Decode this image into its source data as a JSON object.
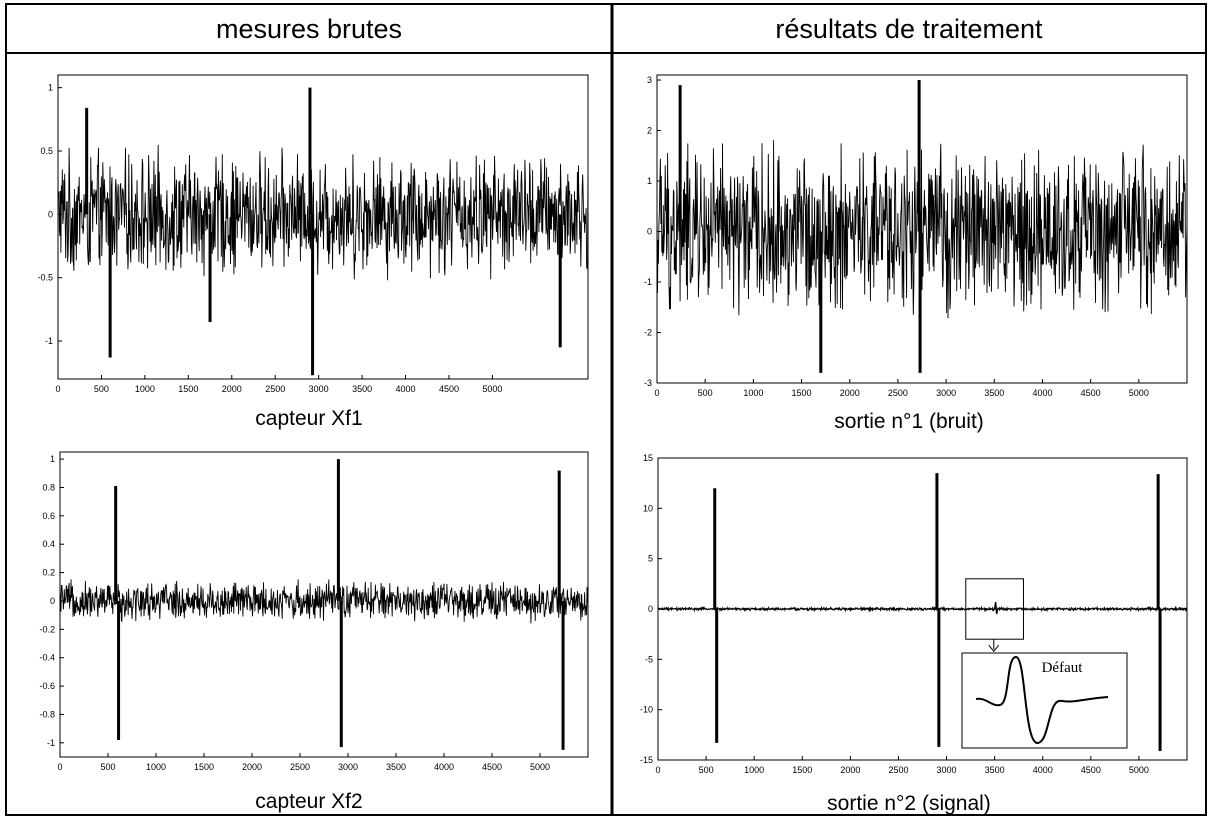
{
  "headers": {
    "left": "mesures brutes",
    "right": "résultats de traitement"
  },
  "colors": {
    "ink": "#000000",
    "background": "#ffffff"
  },
  "chart_data": [
    {
      "type": "line",
      "id": "xf1",
      "caption": "capteur Xf1",
      "title": "",
      "xlabel": "",
      "ylabel": "",
      "xlim": [
        0,
        6100
      ],
      "ylim": [
        -1.3,
        1.1
      ],
      "xticks": [
        0,
        500,
        1000,
        1500,
        2000,
        2500,
        3000,
        3500,
        4000,
        4500,
        5000
      ],
      "xtick_labels": [
        "0",
        "500",
        "1000",
        "1500",
        "2000",
        "2500",
        "3000",
        "3500",
        "4000",
        "4500",
        "5000"
      ],
      "yticks": [
        1,
        0.5,
        0,
        -0.5,
        -1
      ],
      "ytick_labels": [
        "1",
        "0.5",
        "0",
        "-0.5",
        "-1"
      ],
      "noise_amplitude": 0.55,
      "spikes": [
        {
          "x": 330,
          "y": 0.84
        },
        {
          "x": 600,
          "y": -1.13
        },
        {
          "x": 1750,
          "y": -0.85
        },
        {
          "x": 2900,
          "y": 1.0
        },
        {
          "x": 2930,
          "y": -1.27
        },
        {
          "x": 5780,
          "y": -1.05
        }
      ]
    },
    {
      "type": "line",
      "id": "s1",
      "caption": "sortie n°1 (bruit)",
      "title": "",
      "xlabel": "",
      "ylabel": "",
      "xlim": [
        0,
        5500
      ],
      "ylim": [
        -3,
        3.1
      ],
      "xticks": [
        0,
        500,
        1000,
        1500,
        2000,
        2500,
        3000,
        3500,
        4000,
        4500,
        5000
      ],
      "xtick_labels": [
        "0",
        "500",
        "1000",
        "1500",
        "2000",
        "2500",
        "3000",
        "3500",
        "4000",
        "4500",
        "5000"
      ],
      "yticks": [
        3,
        2,
        1,
        0,
        -1,
        -2,
        -3
      ],
      "ytick_labels": [
        "3",
        "2",
        "1",
        "0",
        "-1",
        "-2",
        "-3"
      ],
      "noise_amplitude": 1.9,
      "spikes": [
        {
          "x": 240,
          "y": 2.9
        },
        {
          "x": 1700,
          "y": -2.8
        },
        {
          "x": 2720,
          "y": 3.0
        },
        {
          "x": 2730,
          "y": -2.8
        }
      ]
    },
    {
      "type": "line",
      "id": "xf2",
      "caption": "capteur Xf2",
      "title": "",
      "xlabel": "",
      "ylabel": "",
      "xlim": [
        0,
        5500
      ],
      "ylim": [
        -1.1,
        1.05
      ],
      "xticks": [
        0,
        500,
        1000,
        1500,
        2000,
        2500,
        3000,
        3500,
        4000,
        4500,
        5000
      ],
      "xtick_labels": [
        "0",
        "500",
        "1000",
        "1500",
        "2000",
        "2500",
        "3000",
        "3500",
        "4000",
        "4500",
        "5000"
      ],
      "yticks": [
        1,
        0.8,
        0.6,
        0.4,
        0.2,
        0,
        -0.2,
        -0.4,
        -0.6,
        -0.8,
        -1
      ],
      "ytick_labels": [
        "1",
        "0.8",
        "0.6",
        "0.4",
        "0.2",
        "0",
        "-0.2",
        "-0.4",
        "-0.6",
        "-0.8",
        "-1"
      ],
      "noise_amplitude": 0.16,
      "spikes": [
        {
          "x": 580,
          "y": 0.81
        },
        {
          "x": 610,
          "y": -0.98
        },
        {
          "x": 2900,
          "y": 1.0
        },
        {
          "x": 2930,
          "y": -1.03
        },
        {
          "x": 5200,
          "y": 0.92
        },
        {
          "x": 5240,
          "y": -1.05
        }
      ]
    },
    {
      "type": "line",
      "id": "s2",
      "caption": "sortie n°2 (signal)",
      "title": "",
      "xlabel": "",
      "ylabel": "",
      "xlim": [
        0,
        5500
      ],
      "ylim": [
        -15,
        15
      ],
      "xticks": [
        0,
        500,
        1000,
        1500,
        2000,
        2500,
        3000,
        3500,
        4000,
        4500,
        5000
      ],
      "xtick_labels": [
        "0",
        "500",
        "1000",
        "1500",
        "2000",
        "2500",
        "3000",
        "3500",
        "4000",
        "4500",
        "5000"
      ],
      "yticks": [
        15,
        10,
        5,
        0,
        -5,
        -10,
        -15
      ],
      "ytick_labels": [
        "15",
        "10",
        "5",
        "0",
        "-5",
        "-10",
        "-15"
      ],
      "noise_amplitude": 0.25,
      "spikes": [
        {
          "x": 590,
          "y": 12.0
        },
        {
          "x": 610,
          "y": -13.3
        },
        {
          "x": 2900,
          "y": 13.5
        },
        {
          "x": 2920,
          "y": -13.7
        },
        {
          "x": 5200,
          "y": 13.4
        },
        {
          "x": 5220,
          "y": -14.1
        }
      ],
      "annotation": {
        "label": "Défaut",
        "defect_x": 3500,
        "box_x": [
          3200,
          3800
        ],
        "box_y": [
          -3,
          3
        ]
      }
    }
  ]
}
